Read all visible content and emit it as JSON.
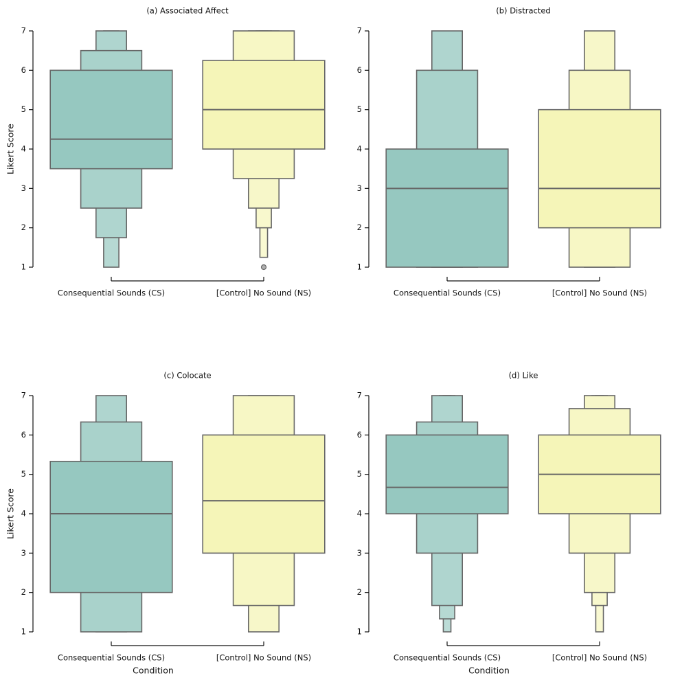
{
  "chart_data": [
    {
      "type": "boxen",
      "title": "(a) Associated Affect",
      "ylabel": "Likert Score",
      "categories": [
        "Consequential Sounds (CS)",
        "[Control] No Sound (NS)"
      ],
      "ylim": [
        1,
        7
      ],
      "yticks": [
        1,
        2,
        3,
        4,
        5,
        6,
        7
      ],
      "boxes": [
        {
          "color": "#96c8c0",
          "median": 4.25,
          "levels": [
            [
              3.5,
              6
            ],
            [
              2.5,
              6.5
            ],
            [
              1.75,
              7
            ],
            [
              1,
              7
            ]
          ],
          "outliers": []
        },
        {
          "color": "#f5f5b8",
          "median": 5,
          "levels": [
            [
              4,
              6.25
            ],
            [
              3.25,
              7
            ],
            [
              2.5,
              7
            ],
            [
              2,
              7
            ],
            [
              1.25,
              7
            ]
          ],
          "outliers": [
            1
          ]
        }
      ]
    },
    {
      "type": "boxen",
      "title": "(b) Distracted",
      "categories": [
        "Consequential Sounds (CS)",
        "[Control] No Sound (NS)"
      ],
      "ylim": [
        1,
        7
      ],
      "yticks": [
        1,
        2,
        3,
        4,
        5,
        6,
        7
      ],
      "boxes": [
        {
          "color": "#96c8c0",
          "median": 3,
          "levels": [
            [
              1,
              4
            ],
            [
              1,
              6
            ],
            [
              1,
              7
            ]
          ],
          "outliers": []
        },
        {
          "color": "#f5f5b8",
          "median": 3,
          "levels": [
            [
              2,
              5
            ],
            [
              1,
              6
            ],
            [
              1,
              7
            ]
          ],
          "outliers": []
        }
      ]
    },
    {
      "type": "boxen",
      "title": "(c) Colocate",
      "ylabel": "Likert Score",
      "xlabel": "Condition",
      "categories": [
        "Consequential Sounds (CS)",
        "[Control] No Sound (NS)"
      ],
      "ylim": [
        1,
        7
      ],
      "yticks": [
        1,
        2,
        3,
        4,
        5,
        6,
        7
      ],
      "boxes": [
        {
          "color": "#96c8c0",
          "median": 4,
          "levels": [
            [
              2,
              5.33
            ],
            [
              1,
              6.33
            ],
            [
              1,
              7
            ]
          ],
          "outliers": []
        },
        {
          "color": "#f5f5b8",
          "median": 4.33,
          "levels": [
            [
              3,
              6
            ],
            [
              1.67,
              7
            ],
            [
              1,
              7
            ]
          ],
          "outliers": []
        }
      ]
    },
    {
      "type": "boxen",
      "title": "(d) Like",
      "xlabel": "Condition",
      "categories": [
        "Consequential Sounds (CS)",
        "[Control] No Sound (NS)"
      ],
      "ylim": [
        1,
        7
      ],
      "yticks": [
        1,
        2,
        3,
        4,
        5,
        6,
        7
      ],
      "boxes": [
        {
          "color": "#96c8c0",
          "median": 4.67,
          "levels": [
            [
              4,
              6
            ],
            [
              3,
              6.33
            ],
            [
              1.67,
              7
            ],
            [
              1.33,
              7
            ],
            [
              1,
              7
            ]
          ],
          "outliers": []
        },
        {
          "color": "#f5f5b8",
          "median": 5,
          "levels": [
            [
              4,
              6
            ],
            [
              3,
              6.67
            ],
            [
              2,
              7
            ],
            [
              1.67,
              7
            ],
            [
              1,
              7
            ]
          ],
          "outliers": []
        }
      ]
    }
  ]
}
